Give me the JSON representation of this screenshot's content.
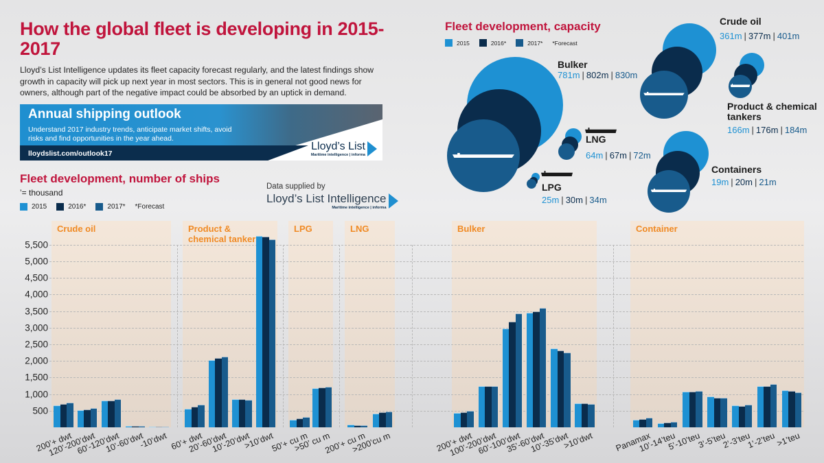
{
  "header": {
    "title": "How the global fleet is developing in 2015-2017",
    "intro": "Lloyd’s List Intelligence updates its fleet capacity forecast regularly, and the latest findings show growth in capacity will pick up next year in most sectors. This is in general not good news for owners, although part of the negative impact could be absorbed by an uptick in demand."
  },
  "banner": {
    "title": "Annual shipping outlook",
    "text": "Understand 2017 industry trends, anticipate market shifts, avoid risks and find opportunities in the year ahead.",
    "url": "lloydslist.com/outlook17",
    "logo_name": "Lloyd’s List",
    "logo_sub": "Maritime intelligence | informa"
  },
  "supplier": {
    "label": "Data supplied by",
    "logo_name": "Lloyd’s List Intelligence",
    "logo_sub": "Maritime intelligence | informa"
  },
  "colors": {
    "2015": "#1e91d3",
    "2016": "#0a2c4c",
    "2017": "#185b8c",
    "title": "#c0143c",
    "panel_title": "#f08a24"
  },
  "legend": {
    "items": [
      "2015",
      "2016*",
      "2017*"
    ],
    "note": "*Forecast"
  },
  "chart_data": [
    {
      "type": "bar",
      "title": "Fleet development, number of ships",
      "subtitle": "’= thousand",
      "series_names": [
        "2015",
        "2016*",
        "2017*"
      ],
      "ylim": [
        0,
        5800
      ],
      "yticks": [
        "500",
        "1,000",
        "1,500",
        "2,000",
        "2,500",
        "3,000",
        "3,500",
        "4,000",
        "4,500",
        "5,000",
        "5,500"
      ],
      "ytick_values": [
        500,
        1000,
        1500,
        2000,
        2500,
        3000,
        3500,
        4000,
        4500,
        5000,
        5500
      ],
      "grid": true,
      "legend_placement": "top-left",
      "groups": [
        {
          "label": "Crude oil",
          "categories": [
            "200’+ dwt",
            "120’-200’dwt",
            "60’-120’dwt",
            "10’-60’dwt",
            "-10’dwt"
          ],
          "series": [
            [
              660,
              510,
              810,
              35,
              30
            ],
            [
              700,
              530,
              810,
              35,
              30
            ],
            [
              750,
              570,
              840,
              35,
              30
            ]
          ]
        },
        {
          "label": "Product & chemical tankers",
          "categories": [
            "60’+ dwt",
            "20’-60’dwt",
            "10’-20’dwt",
            ">10’dwt"
          ],
          "series": [
            [
              560,
              2030,
              850,
              5770
            ],
            [
              620,
              2090,
              840,
              5745
            ],
            [
              680,
              2120,
              825,
              5660
            ]
          ]
        },
        {
          "label": "LPG",
          "categories": [
            "50’+ cu m",
            ">50’ cu m"
          ],
          "series": [
            [
              235,
              1170
            ],
            [
              275,
              1190
            ],
            [
              300,
              1215
            ]
          ]
        },
        {
          "label": "LNG",
          "categories": [
            "200’+ cu m",
            ">200’cu m"
          ],
          "series": [
            [
              80,
              410
            ],
            [
              60,
              445
            ],
            [
              60,
              475
            ]
          ]
        },
        {
          "label": "Bulker",
          "categories": [
            "200’+ dwt",
            "100’-200’dwt",
            "60’-100’dwt",
            "35’-60’dwt",
            "10’-35’dwt",
            ">10’dwt"
          ],
          "series": [
            [
              425,
              1245,
              2975,
              3450,
              2370,
              730
            ],
            [
              460,
              1230,
              3175,
              3490,
              2310,
              730
            ],
            [
              500,
              1245,
              3430,
              3590,
              2245,
              710
            ]
          ]
        },
        {
          "label": "Container",
          "categories": [
            "Panamax",
            "10’-14’teu",
            "5’-10’teu",
            "3’-5’teu",
            "2’-3’teu",
            "1’-2’teu",
            ">1’teu"
          ],
          "series": [
            [
              220,
              125,
              1080,
              935,
              665,
              1235,
              1105
            ],
            [
              255,
              145,
              1070,
              885,
              645,
              1235,
              1095
            ],
            [
              280,
              170,
              1095,
              885,
              675,
              1300,
              1060
            ]
          ]
        }
      ]
    },
    {
      "type": "bubble",
      "title": "Fleet development, capacity",
      "series_names": [
        "2015",
        "2016*",
        "2017*"
      ],
      "unit": "m",
      "sectors": [
        {
          "label": "Bulker",
          "values": [
            781,
            802,
            830
          ],
          "texts": [
            "781m",
            "802m",
            "830m"
          ]
        },
        {
          "label": "Crude oil",
          "values": [
            361,
            377,
            401
          ],
          "texts": [
            "361m",
            "377m",
            "401m"
          ]
        },
        {
          "label": "Product & chemical tankers",
          "values": [
            166,
            176,
            184
          ],
          "texts": [
            "166m",
            "176m",
            "184m"
          ]
        },
        {
          "label": "LNG",
          "values": [
            64,
            67,
            72
          ],
          "texts": [
            "64m",
            "67m",
            "72m"
          ]
        },
        {
          "label": "LPG",
          "values": [
            25,
            30,
            34
          ],
          "texts": [
            "25m",
            "30m",
            "34m"
          ]
        },
        {
          "label": "Containers",
          "values": [
            19,
            20,
            21
          ],
          "texts": [
            "19m",
            "20m",
            "21m"
          ]
        }
      ]
    }
  ]
}
